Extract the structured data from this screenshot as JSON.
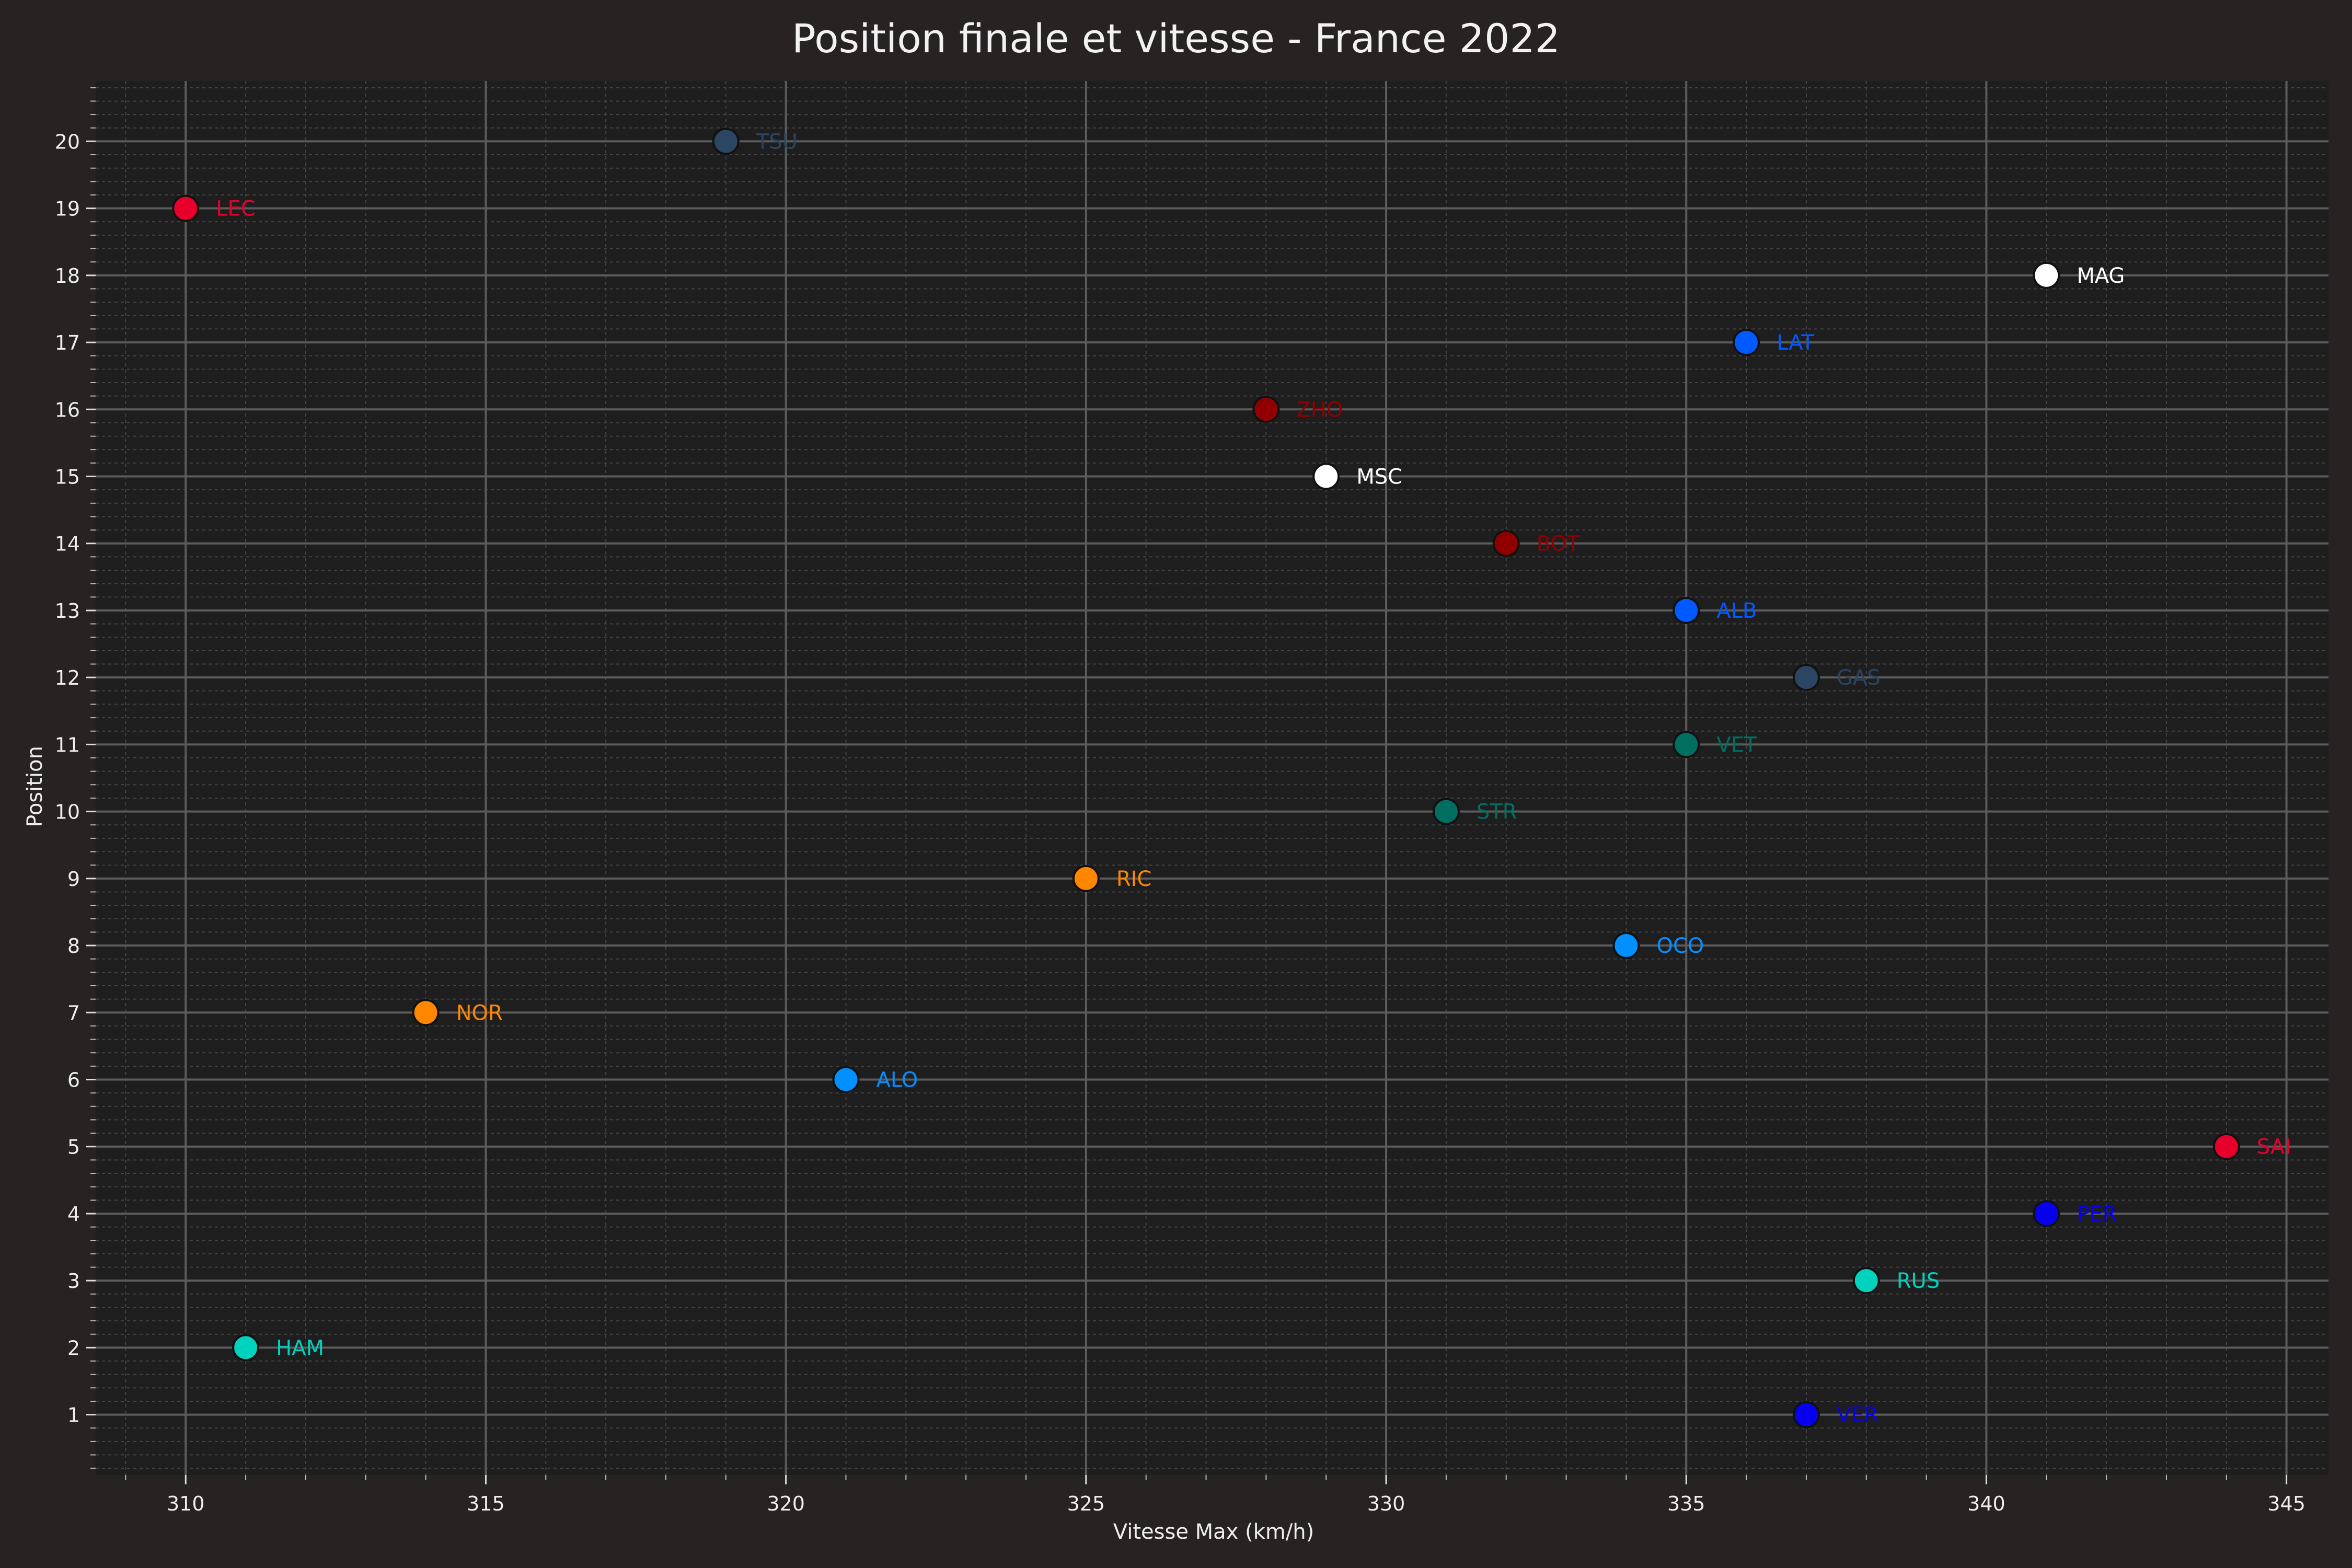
{
  "chart_data": {
    "type": "scatter",
    "title": "Position finale et vitesse - France 2022",
    "xlabel": "Vitesse Max (km/h)",
    "ylabel": "Position",
    "xlim": [
      308.5,
      345.7
    ],
    "ylim": [
      0.1,
      20.9
    ],
    "x_ticks": [
      310,
      315,
      320,
      325,
      330,
      335,
      340,
      345
    ],
    "y_ticks": [
      1,
      2,
      3,
      4,
      5,
      6,
      7,
      8,
      9,
      10,
      11,
      12,
      13,
      14,
      15,
      16,
      17,
      18,
      19,
      20
    ],
    "grid": true,
    "legend": "none",
    "points": [
      {
        "label": "TSU",
        "x": 319,
        "y": 20,
        "color": "#2b4562"
      },
      {
        "label": "LEC",
        "x": 310,
        "y": 19,
        "color": "#e8002d"
      },
      {
        "label": "MAG",
        "x": 341,
        "y": 18,
        "color": "#ffffff"
      },
      {
        "label": "LAT",
        "x": 336,
        "y": 17,
        "color": "#005aff"
      },
      {
        "label": "ZHO",
        "x": 328,
        "y": 16,
        "color": "#900000"
      },
      {
        "label": "MSC",
        "x": 329,
        "y": 15,
        "color": "#ffffff"
      },
      {
        "label": "BOT",
        "x": 332,
        "y": 14,
        "color": "#900000"
      },
      {
        "label": "ALB",
        "x": 335,
        "y": 13,
        "color": "#005aff"
      },
      {
        "label": "GAS",
        "x": 337,
        "y": 12,
        "color": "#2b4562"
      },
      {
        "label": "VET",
        "x": 335,
        "y": 11,
        "color": "#006f62"
      },
      {
        "label": "STR",
        "x": 331,
        "y": 10,
        "color": "#006f62"
      },
      {
        "label": "RIC",
        "x": 325,
        "y": 9,
        "color": "#ff8700"
      },
      {
        "label": "OCO",
        "x": 334,
        "y": 8,
        "color": "#0090ff"
      },
      {
        "label": "NOR",
        "x": 314,
        "y": 7,
        "color": "#ff8700"
      },
      {
        "label": "ALO",
        "x": 321,
        "y": 6,
        "color": "#0090ff"
      },
      {
        "label": "SAI",
        "x": 344,
        "y": 5,
        "color": "#e8002d"
      },
      {
        "label": "PER",
        "x": 341,
        "y": 4,
        "color": "#0600ef"
      },
      {
        "label": "RUS",
        "x": 338,
        "y": 3,
        "color": "#00d2be"
      },
      {
        "label": "HAM",
        "x": 311,
        "y": 2,
        "color": "#00d2be"
      },
      {
        "label": "VER",
        "x": 337,
        "y": 1,
        "color": "#0600ef"
      }
    ]
  },
  "colors": {
    "background": "#262322",
    "plot_background": "#1e1e1e",
    "text": "#eeeeee"
  }
}
